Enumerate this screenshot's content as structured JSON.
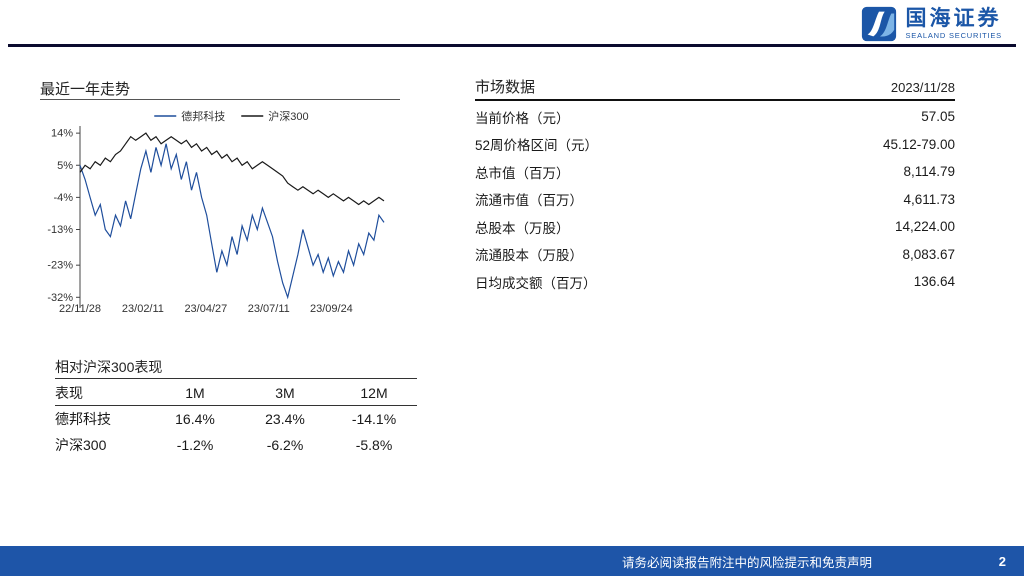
{
  "page": {
    "footer_text": "请务必阅读报告附注中的风险提示和免责声明",
    "page_number": "2"
  },
  "logo": {
    "name": "国海证券",
    "subtitle": "SEALAND SECURITIES"
  },
  "trend_section": {
    "title": "最近一年走势"
  },
  "chart_data": {
    "type": "line",
    "title": "最近一年走势",
    "ylim": [
      -35,
      16
    ],
    "y_ticks": [
      14,
      5,
      -4,
      -13,
      -23,
      -32
    ],
    "y_tick_labels": [
      "14%",
      "5%",
      "-4%",
      "-13%",
      "-23%",
      "-32%"
    ],
    "x_tick_labels": [
      "22/11/28",
      "23/02/11",
      "23/04/27",
      "23/07/11",
      "23/09/24"
    ],
    "x_tick_positions": [
      0,
      0.207,
      0.414,
      0.621,
      0.827
    ],
    "legend_position": "top-center",
    "grid": false,
    "series": [
      {
        "name": "德邦科技",
        "color": "#1F4E9C",
        "values": [
          5,
          1,
          -4,
          -9,
          -6,
          -13,
          -15,
          -9,
          -12,
          -5,
          -10,
          -3,
          4,
          9,
          3,
          10,
          5,
          11,
          4,
          8,
          1,
          6,
          -2,
          3,
          -4,
          -9,
          -17,
          -25,
          -19,
          -23,
          -15,
          -20,
          -12,
          -16,
          -9,
          -13,
          -7,
          -11,
          -15,
          -22,
          -28,
          -32,
          -26,
          -20,
          -13,
          -18,
          -23,
          -20,
          -25,
          -21,
          -26,
          -22,
          -25,
          -19,
          -23,
          -17,
          -20,
          -14,
          -16,
          -9,
          -11
        ]
      },
      {
        "name": "沪深300",
        "color": "#1a1a1a",
        "values": [
          3,
          5,
          4,
          6,
          5,
          7,
          6,
          8,
          9,
          11,
          13,
          12,
          13,
          14,
          12,
          13,
          11,
          12,
          13,
          12,
          11,
          12,
          10,
          11,
          9,
          10,
          8,
          9,
          7,
          8,
          6,
          7,
          5,
          6,
          4,
          5,
          6,
          5,
          4,
          3,
          2,
          0,
          -1,
          -2,
          -1,
          -2,
          -3,
          -2,
          -3,
          -4,
          -3,
          -4,
          -5,
          -4,
          -5,
          -6,
          -5,
          -6,
          -5,
          -4,
          -5
        ]
      }
    ]
  },
  "relative_table": {
    "title": "相对沪深300表现",
    "headers": [
      "表现",
      "1M",
      "3M",
      "12M"
    ],
    "rows": [
      {
        "name": "德邦科技",
        "m1": "16.4%",
        "m3": "23.4%",
        "m12": "-14.1%"
      },
      {
        "name": "沪深300",
        "m1": "-1.2%",
        "m3": "-6.2%",
        "m12": "-5.8%"
      }
    ]
  },
  "market_data": {
    "title": "市场数据",
    "date": "2023/11/28",
    "rows": [
      {
        "label": "当前价格（元）",
        "value": "57.05"
      },
      {
        "label": "52周价格区间（元）",
        "value": "45.12-79.00"
      },
      {
        "label": "总市值（百万）",
        "value": "8,114.79"
      },
      {
        "label": "流通市值（百万）",
        "value": "4,611.73"
      },
      {
        "label": "总股本（万股）",
        "value": "14,224.00"
      },
      {
        "label": "流通股本（万股）",
        "value": "8,083.67"
      },
      {
        "label": "日均成交额（百万）",
        "value": "136.64"
      }
    ]
  }
}
